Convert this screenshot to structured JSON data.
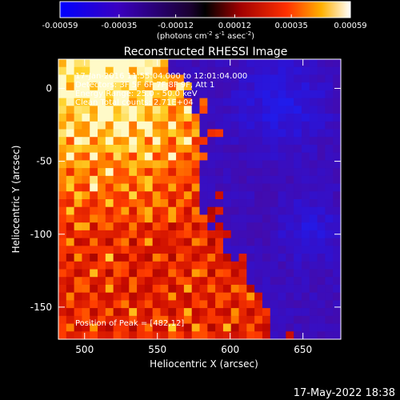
{
  "chart_data": {
    "type": "heatmap",
    "title": "Reconstructed RHESSI Image",
    "xlabel": "Heliocentric X (arcsec)",
    "ylabel": "Heliocentric Y (arcsec)",
    "xlim": [
      482,
      676
    ],
    "ylim": [
      -172,
      20
    ],
    "x_ticks": [
      500,
      550,
      600,
      650
    ],
    "y_ticks": [
      0,
      -50,
      -100,
      -150
    ],
    "colorbar": {
      "ticks": [
        "-0.00059",
        "-0.00035",
        "-0.00012",
        "0.00012",
        "0.00035",
        "0.00059"
      ],
      "range": [
        -0.00059,
        0.00059
      ],
      "units_prefix": "(photons cm",
      "units_sup1": "-2",
      "units_mid": " s",
      "units_sup2": "-1",
      "units_mid2": " asec",
      "units_sup3": "-2",
      "units_suffix": ")"
    },
    "annotations": [
      "17-Jan-2016 11:55:04.000 to 12:01:04.000",
      "Detectors: 3F 5F 6F 7F 8F 9F, Att 1",
      "Energy Range: 25.0 - 50.0 keV",
      "Clean     Total counts: 2.71E+04"
    ],
    "peak_text": "Position of Peak = [482,12]",
    "peak_position": [
      482,
      12
    ],
    "grid": false
  },
  "footer": {
    "timestamp": "17-May-2022 18:38"
  },
  "colors": {
    "background": "#000000",
    "foreground": "#ffffff",
    "negative_low": "#0000ff",
    "zero": "#000000",
    "positive_mid": "#ff0000",
    "positive_high": "#ffffff"
  }
}
